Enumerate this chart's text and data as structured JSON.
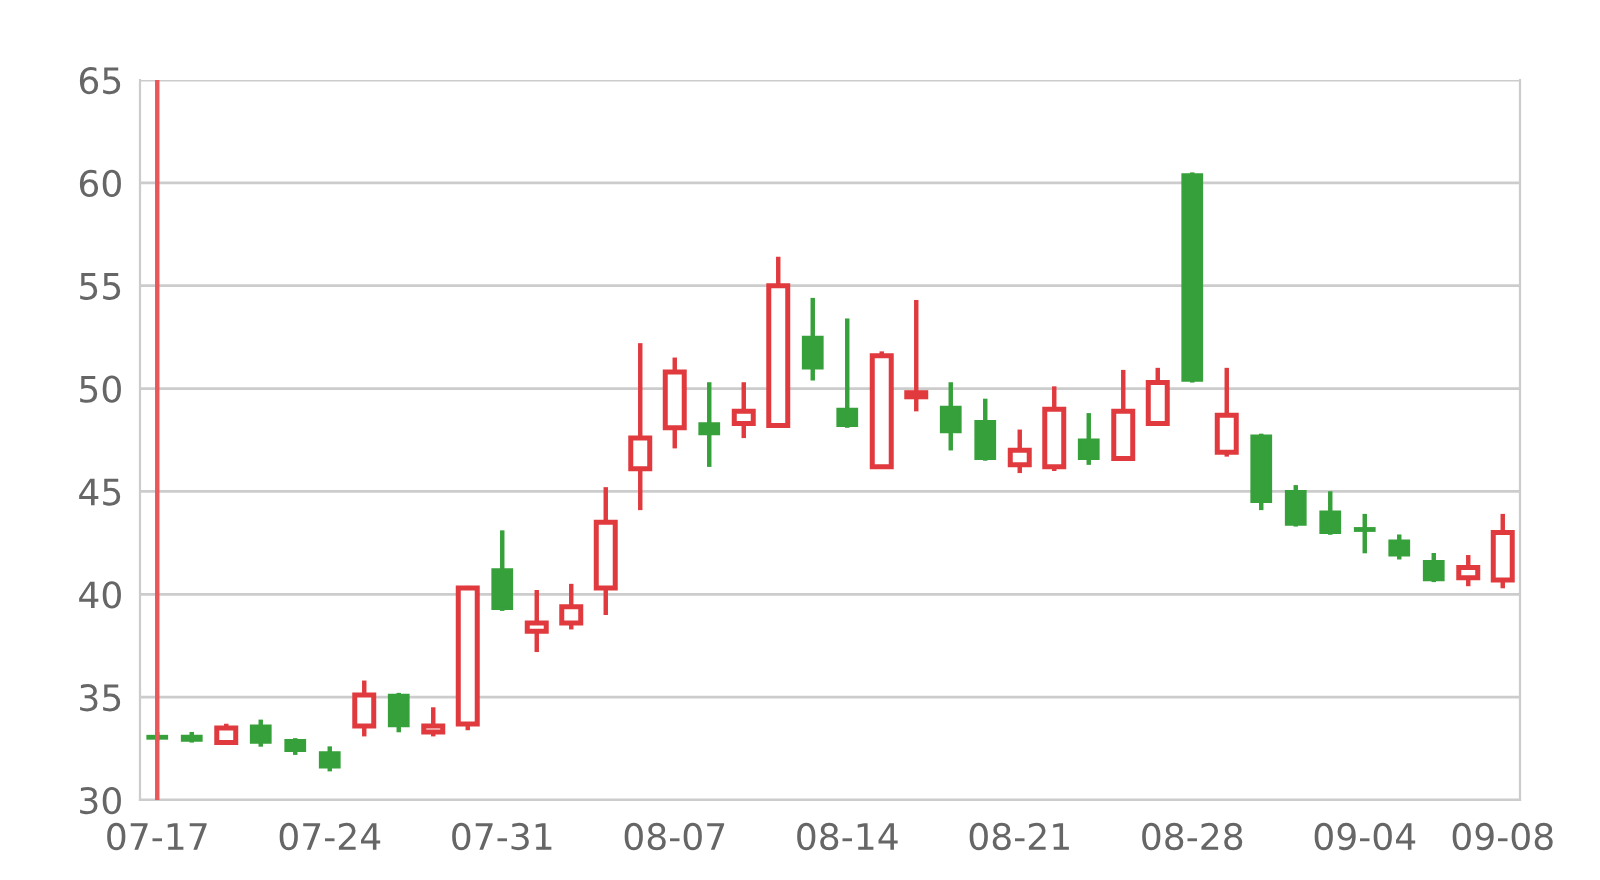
{
  "chart_data": {
    "type": "candlestick",
    "categories": [
      "07-17",
      null,
      null,
      null,
      null,
      "07-24",
      null,
      null,
      null,
      null,
      "07-31",
      null,
      null,
      null,
      null,
      "08-07",
      null,
      null,
      null,
      null,
      "08-14",
      null,
      null,
      null,
      null,
      "08-21",
      null,
      null,
      null,
      null,
      "08-28",
      null,
      null,
      null,
      null,
      "09-04",
      null,
      null,
      null,
      "09-08"
    ],
    "ohlc": [
      [
        33.1,
        33.2,
        33.0,
        33.0
      ],
      [
        33.1,
        33.2,
        32.9,
        32.9
      ],
      [
        32.8,
        33.6,
        32.8,
        33.5
      ],
      [
        33.6,
        33.8,
        32.7,
        32.8
      ],
      [
        32.9,
        32.9,
        32.3,
        32.4
      ],
      [
        32.3,
        32.5,
        31.5,
        31.6
      ],
      [
        33.6,
        35.7,
        33.2,
        35.1
      ],
      [
        35.1,
        35.1,
        33.4,
        33.6
      ],
      [
        33.3,
        34.4,
        33.2,
        33.6
      ],
      [
        33.7,
        40.3,
        33.5,
        40.3
      ],
      [
        41.2,
        43.0,
        39.3,
        39.3
      ],
      [
        38.2,
        40.1,
        37.3,
        38.6
      ],
      [
        38.6,
        40.4,
        38.4,
        39.4
      ],
      [
        40.3,
        45.1,
        39.1,
        43.5
      ],
      [
        46.1,
        52.1,
        44.2,
        47.6
      ],
      [
        48.1,
        51.4,
        47.2,
        50.8
      ],
      [
        48.3,
        50.2,
        46.3,
        47.8
      ],
      [
        48.3,
        50.2,
        47.7,
        48.9
      ],
      [
        48.2,
        56.3,
        48.2,
        55.0
      ],
      [
        52.5,
        54.3,
        50.5,
        51.0
      ],
      [
        49.0,
        53.3,
        48.2,
        48.2
      ],
      [
        46.2,
        51.7,
        46.2,
        51.6
      ],
      [
        49.6,
        54.2,
        49.0,
        49.8
      ],
      [
        49.1,
        50.2,
        47.1,
        47.9
      ],
      [
        48.4,
        49.4,
        46.6,
        46.6
      ],
      [
        46.3,
        47.9,
        46.0,
        47.0
      ],
      [
        46.2,
        50.0,
        46.1,
        49.0
      ],
      [
        47.5,
        48.7,
        46.4,
        46.6
      ],
      [
        46.6,
        50.8,
        46.6,
        48.9
      ],
      [
        48.3,
        50.9,
        48.3,
        50.3
      ],
      [
        60.4,
        60.4,
        50.4,
        50.4
      ],
      [
        46.9,
        50.9,
        46.8,
        48.7
      ],
      [
        47.7,
        47.7,
        44.2,
        44.5
      ],
      [
        45.0,
        45.2,
        43.4,
        43.4
      ],
      [
        44.0,
        44.9,
        43.0,
        43.0
      ],
      [
        43.2,
        43.8,
        42.1,
        43.1
      ],
      [
        42.6,
        42.8,
        41.8,
        41.9
      ],
      [
        41.6,
        41.9,
        40.7,
        40.7
      ],
      [
        40.8,
        41.8,
        40.5,
        41.3
      ],
      [
        40.7,
        43.8,
        40.4,
        43.0
      ]
    ],
    "colors": [
      "#36a03a",
      "#36a03a",
      "#e03a3e",
      "#36a03a",
      "#36a03a",
      "#36a03a",
      "#e03a3e",
      "#36a03a",
      "#e03a3e",
      "#e03a3e",
      "#36a03a",
      "#e03a3e",
      "#e03a3e",
      "#e03a3e",
      "#e03a3e",
      "#e03a3e",
      "#36a03a",
      "#e03a3e",
      "#e03a3e",
      "#36a03a",
      "#36a03a",
      "#e03a3e",
      "#e03a3e",
      "#36a03a",
      "#36a03a",
      "#e03a3e",
      "#e03a3e",
      "#36a03a",
      "#e03a3e",
      "#e03a3e",
      "#36a03a",
      "#e03a3e",
      "#36a03a",
      "#36a03a",
      "#36a03a",
      "#36a03a",
      "#36a03a",
      "#36a03a",
      "#e03a3e",
      "#e03a3e"
    ],
    "ylim": [
      30,
      65
    ],
    "yticks": [
      30,
      35,
      40,
      45,
      50,
      55,
      60,
      65
    ],
    "grid": "y",
    "ref_lines": [
      {
        "axis": "x",
        "value": "07-17",
        "color": "#e8585b"
      }
    ]
  }
}
